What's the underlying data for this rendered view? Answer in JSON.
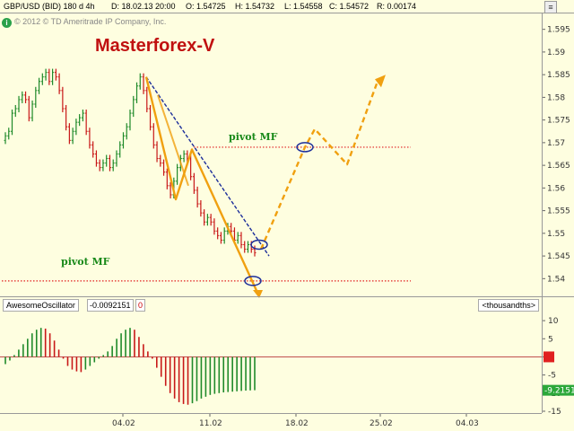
{
  "header": {
    "symbol": "GBP/USD (BID) 180 d 4h",
    "date": "D: 18.02.13 20:00",
    "open": "O: 1.54725",
    "high": "H: 1.54732",
    "low": "L: 1.54558",
    "close": "C: 1.54572",
    "range": "R: 0.00174"
  },
  "watermark": {
    "badge": "i",
    "text": "© 2012 © TD Ameritrade IP Company, Inc."
  },
  "brand": "Masterforex-V",
  "panel_button": "≡",
  "annotations": {
    "pivot_upper": "pivot MF",
    "pivot_lower": "pivot MF"
  },
  "indicator": {
    "name": "AwesomeOscillator",
    "value": "-0.0092151",
    "mode": "0",
    "units": "<thousandths>",
    "last_value_label": "-9.2151"
  },
  "colors": {
    "background": "#fefee0",
    "up_bar": "#1f8a2a",
    "down_bar": "#c81818",
    "forecast": "#f0a010",
    "trendline": "#1c2e9a",
    "pivot_line": "#e02020"
  },
  "chart_data": [
    {
      "type": "ohlc",
      "series_name": "GBP/USD (BID) 180 d 4h",
      "x_ticks": [
        "04.02",
        "11.02",
        "18.02",
        "25.02",
        "04.03"
      ],
      "y_ticks": [
        1.54,
        1.545,
        1.55,
        1.555,
        1.56,
        1.565,
        1.57,
        1.575,
        1.58,
        1.585,
        1.59,
        1.595
      ],
      "ylim": [
        1.5365,
        1.5985
      ],
      "close_values": [
        1.5715,
        1.5725,
        1.5765,
        1.5775,
        1.5795,
        1.5805,
        1.5795,
        1.5755,
        1.5785,
        1.5815,
        1.5835,
        1.5845,
        1.5855,
        1.5835,
        1.5855,
        1.5845,
        1.5815,
        1.5775,
        1.5735,
        1.5705,
        1.5725,
        1.5745,
        1.5755,
        1.5765,
        1.5725,
        1.5695,
        1.5675,
        1.5655,
        1.5645,
        1.5655,
        1.5665,
        1.5645,
        1.5655,
        1.5675,
        1.5695,
        1.5715,
        1.5735,
        1.5765,
        1.5795,
        1.5825,
        1.5845,
        1.5815,
        1.5775,
        1.5735,
        1.5695,
        1.5665,
        1.5655,
        1.5635,
        1.5605,
        1.5585,
        1.5615,
        1.5645,
        1.5665,
        1.5675,
        1.5665,
        1.5625,
        1.5595,
        1.5565,
        1.5545,
        1.5525,
        1.5535,
        1.5525,
        1.5505,
        1.5495,
        1.5485,
        1.5505,
        1.5515,
        1.5505,
        1.5485,
        1.5495,
        1.5475,
        1.5465,
        1.5475,
        1.5465,
        1.5457
      ],
      "pivot_levels": [
        1.569,
        1.5395
      ],
      "forecast_path": [
        [
          "14.02",
          1.5465
        ],
        [
          "18.02",
          1.569
        ],
        [
          "20.02",
          1.573
        ],
        [
          "22.02",
          1.5652
        ],
        [
          "25.02",
          1.583
        ]
      ]
    },
    {
      "type": "bar",
      "series_name": "AwesomeOscillator",
      "y_ticks": [
        10,
        5,
        0,
        -5,
        -10,
        -15
      ],
      "ylim": [
        -15.5,
        12.5
      ],
      "values": [
        -2.0,
        -1.0,
        0.5,
        2.0,
        3.5,
        5.0,
        6.5,
        7.5,
        8.0,
        7.8,
        6.5,
        4.5,
        2.0,
        -0.5,
        -2.5,
        -3.5,
        -4.0,
        -4.2,
        -3.5,
        -2.5,
        -1.5,
        -0.5,
        0.5,
        1.5,
        3.0,
        5.0,
        6.5,
        7.5,
        8.0,
        7.5,
        5.5,
        3.5,
        1.5,
        -0.5,
        -3.0,
        -5.5,
        -8.0,
        -10.0,
        -11.5,
        -12.5,
        -13.0,
        -13.2,
        -12.8,
        -12.2,
        -11.5,
        -11.0,
        -10.5,
        -10.2,
        -10.0,
        -9.8,
        -9.7,
        -9.6,
        -9.5,
        -9.4,
        -9.3,
        -9.25,
        -9.2
      ]
    }
  ]
}
